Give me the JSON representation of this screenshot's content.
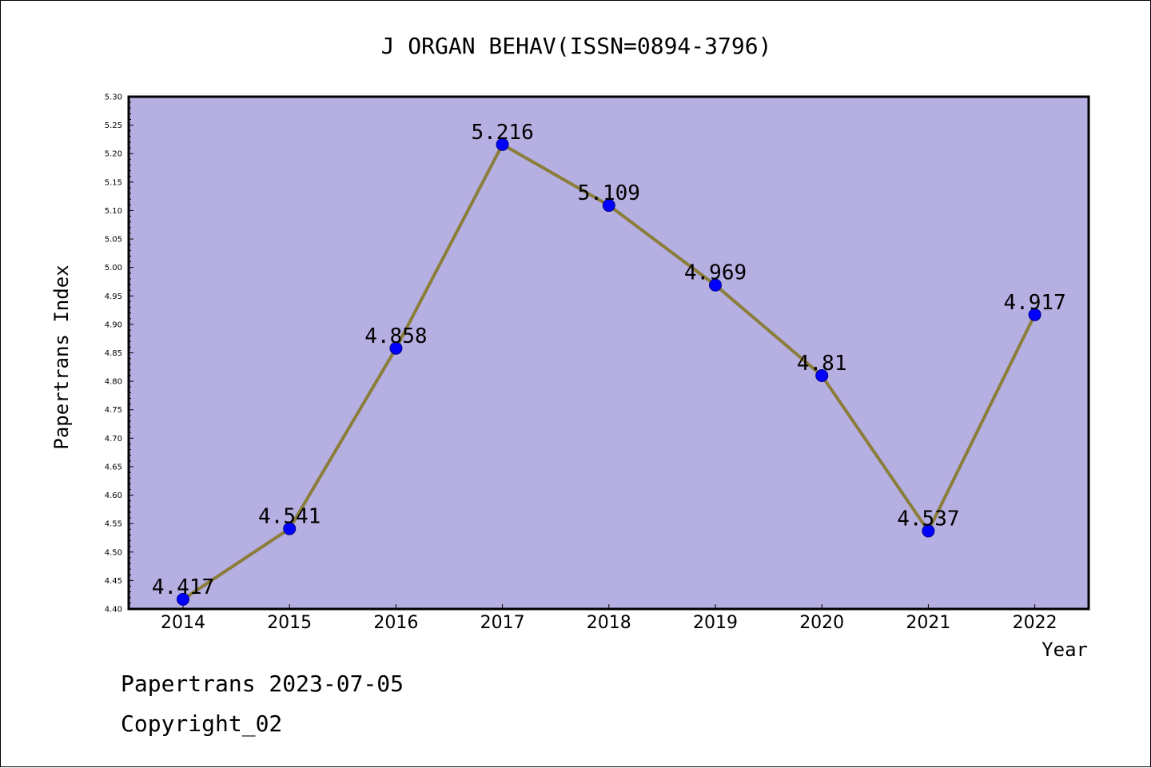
{
  "chart_data": {
    "type": "line",
    "title": "J ORGAN BEHAV(ISSN=0894-3796)",
    "xlabel": "Year",
    "ylabel": "Papertrans Index",
    "categories": [
      "2014",
      "2015",
      "2016",
      "2017",
      "2018",
      "2019",
      "2020",
      "2021",
      "2022"
    ],
    "series": [
      {
        "values": [
          4.417,
          4.541,
          4.858,
          5.216,
          5.109,
          4.969,
          4.81,
          4.537,
          4.917
        ],
        "labels": [
          "4.417",
          "4.541",
          "4.858",
          "5.216",
          "5.109",
          "4.969",
          "4.81",
          "4.537",
          "4.917"
        ]
      }
    ],
    "ylim": [
      4.4,
      5.3
    ],
    "yticks": [
      "4.40",
      "4.45",
      "4.50",
      "4.55",
      "4.60",
      "4.65",
      "4.70",
      "4.75",
      "4.80",
      "4.85",
      "4.90",
      "4.95",
      "5.00",
      "5.05",
      "5.10",
      "5.15",
      "5.20",
      "5.25",
      "5.30"
    ],
    "grid": false,
    "colors": {
      "plot_background": "#b5afe2",
      "line": "#8b7d3a",
      "marker": "#0000ff",
      "marker_edge": "#00008b"
    }
  },
  "footer": {
    "line1": "Papertrans 2023-07-05",
    "line2": "Copyright_02"
  }
}
